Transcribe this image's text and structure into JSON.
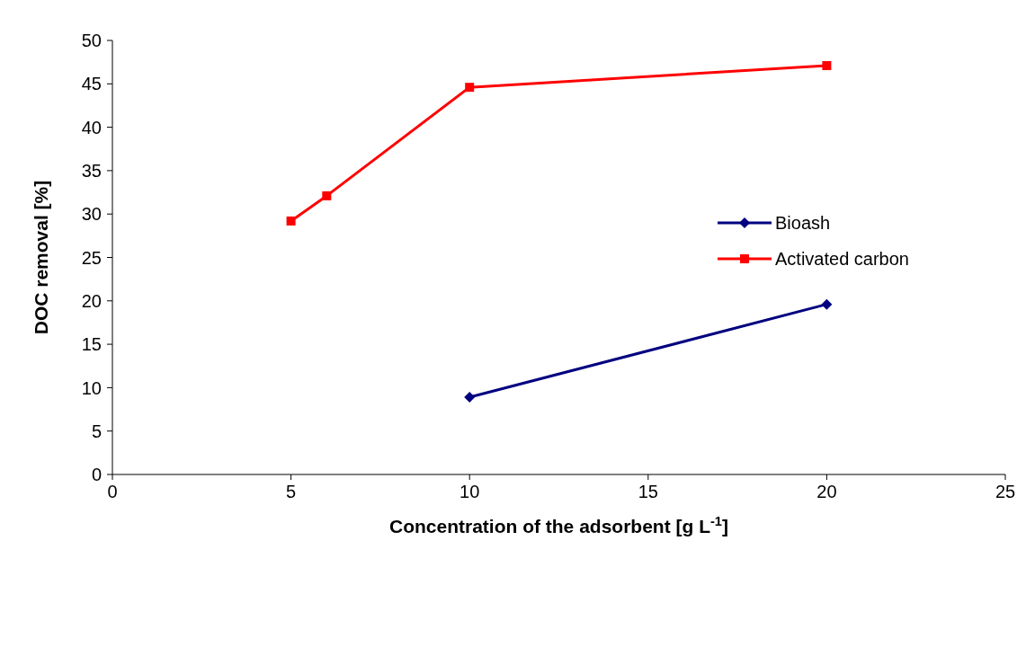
{
  "chart_data": {
    "type": "line",
    "xlabel": "Concentration of the adsorbent [g L$^{-1}$]",
    "ylabel": "DOC removal [%]",
    "xlim": [
      0,
      25
    ],
    "xticks": [
      0,
      5,
      10,
      15,
      20,
      25
    ],
    "ylim": [
      0,
      50
    ],
    "yticks": [
      0,
      5,
      10,
      15,
      20,
      25,
      30,
      35,
      40,
      45,
      50
    ],
    "grid": false,
    "legend": "right",
    "line_style": "solid",
    "series": [
      {
        "name": "Bioash",
        "color": "#000080",
        "marker": "diamond",
        "x": [
          10,
          20
        ],
        "values": [
          8.9,
          19.6
        ]
      },
      {
        "name": "Activated carbon",
        "color": "#ff0000",
        "marker": "square",
        "x": [
          5,
          6,
          10,
          20
        ],
        "values": [
          29.2,
          32.1,
          44.6,
          47.1
        ]
      }
    ]
  }
}
